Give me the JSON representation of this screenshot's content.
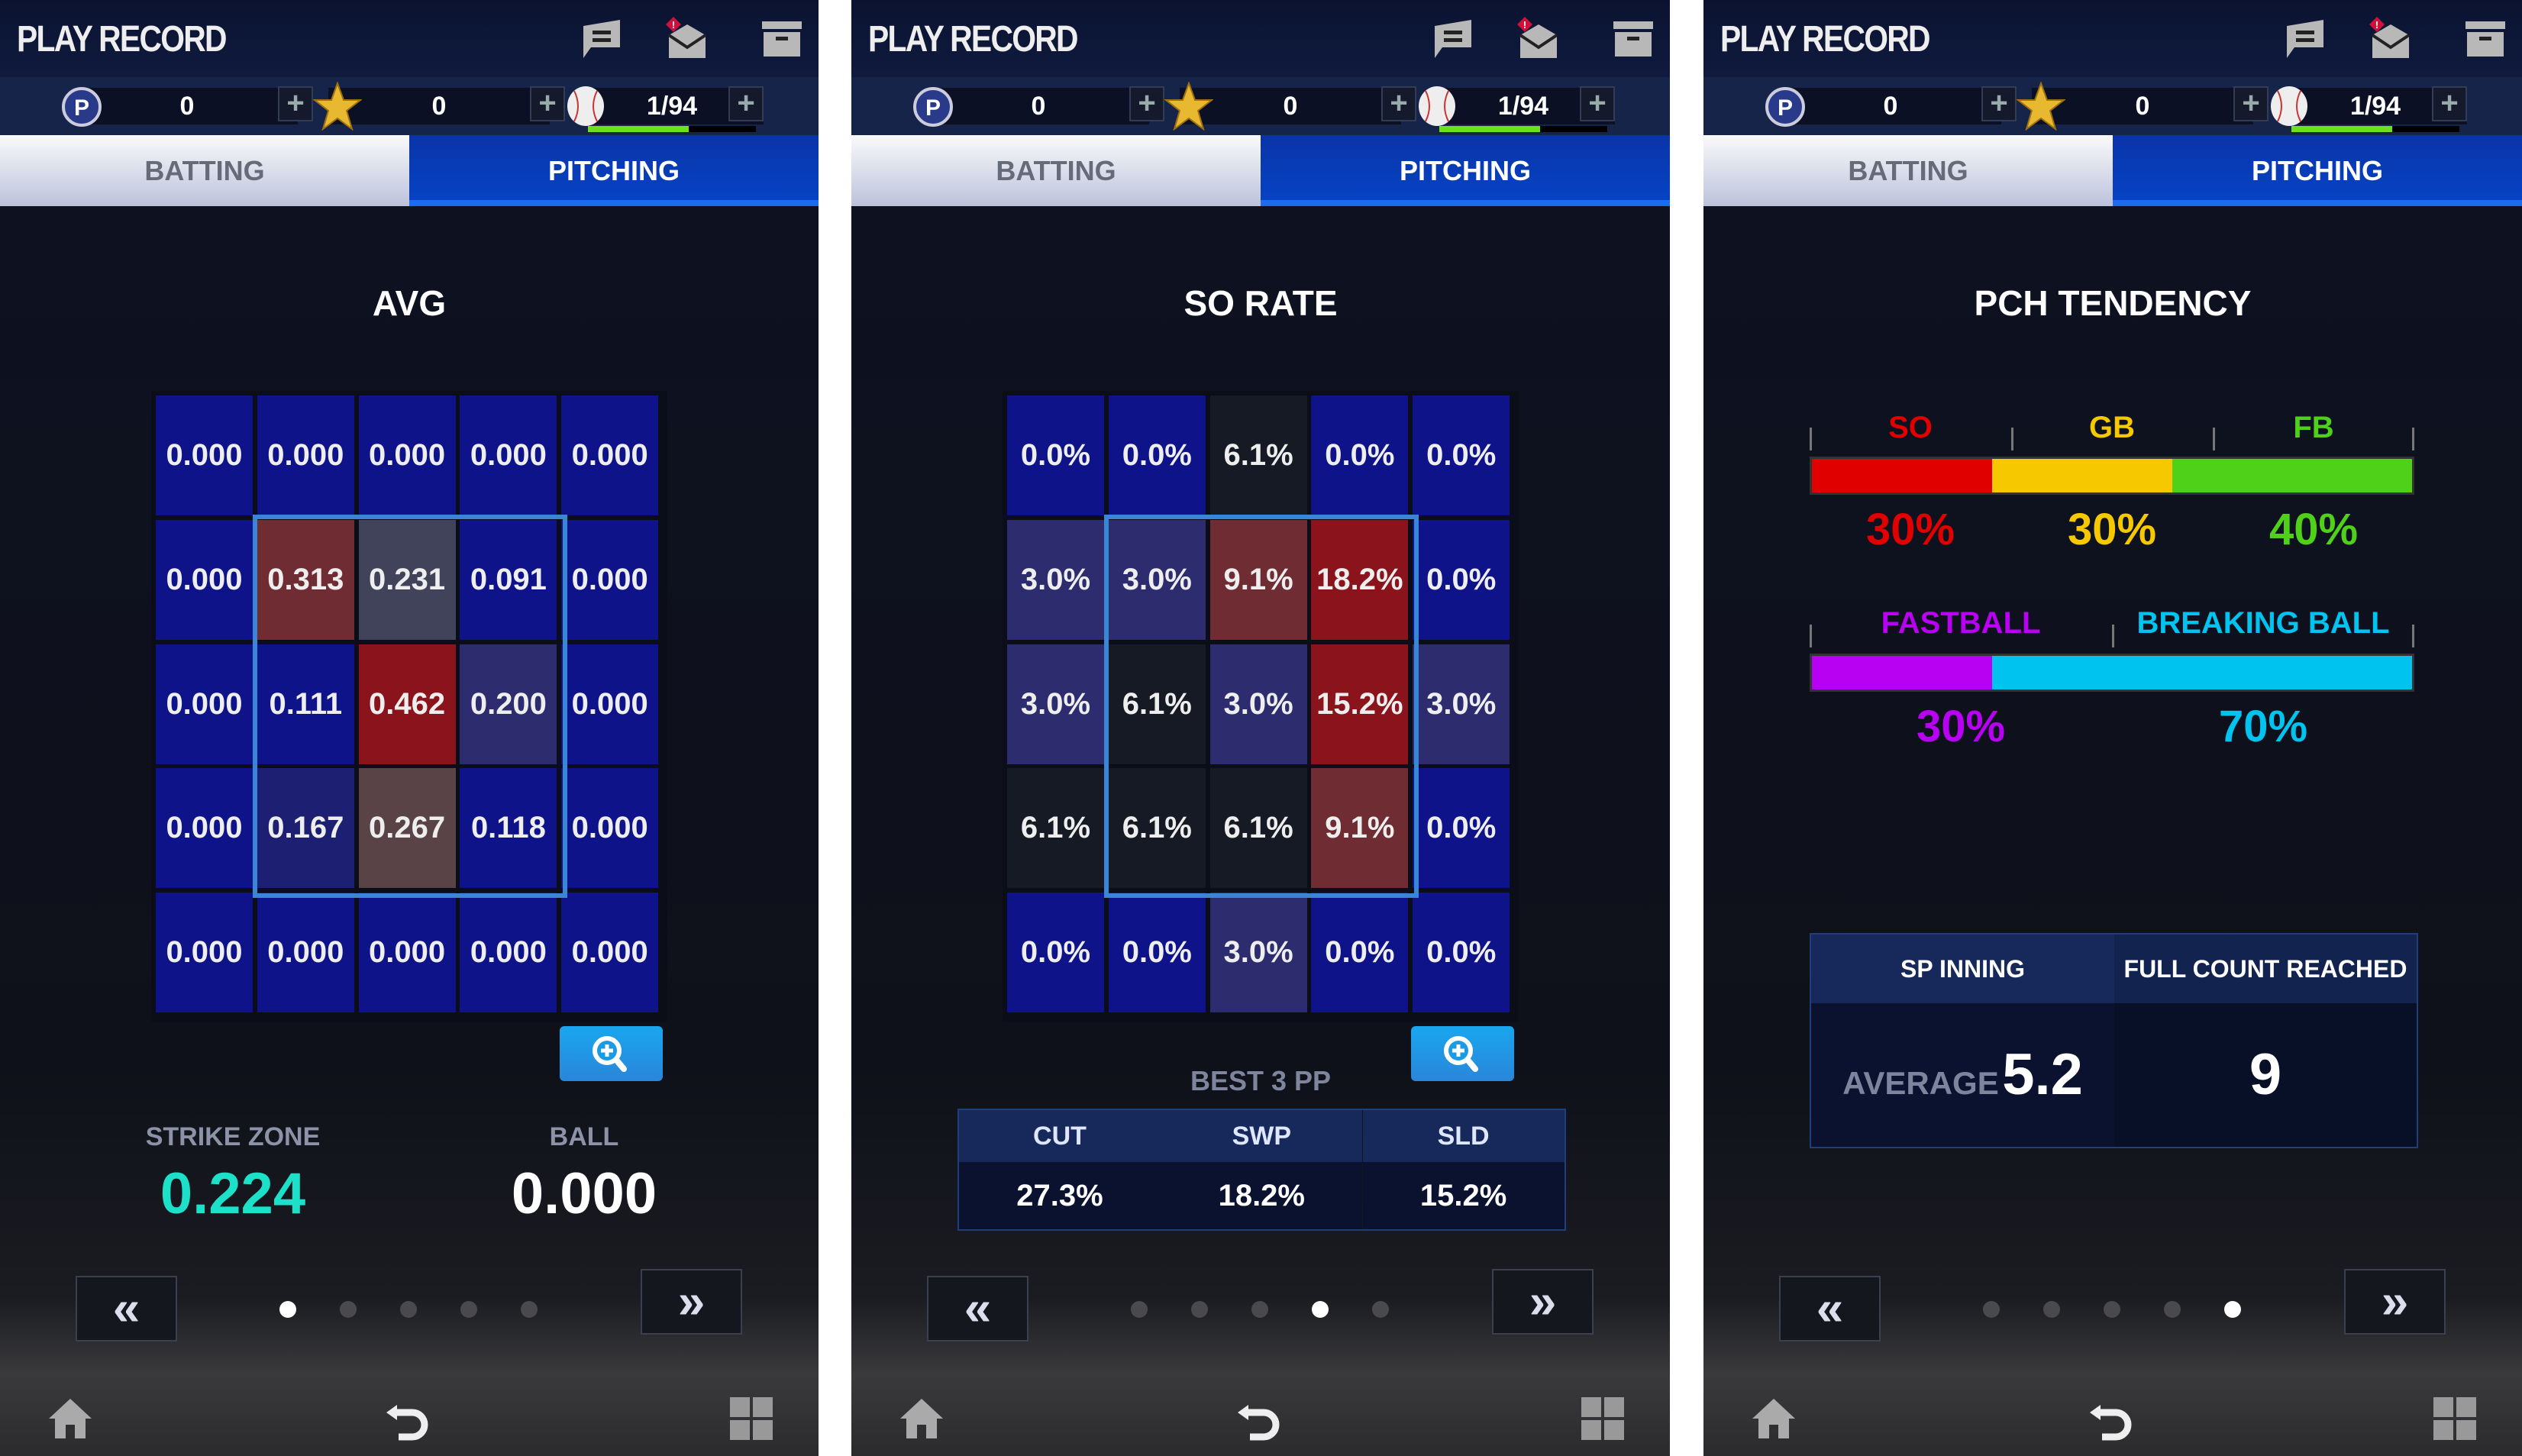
{
  "header": {
    "title": "PLAY RECORD",
    "icons": [
      "chat-icon",
      "mail-icon",
      "storage-icon"
    ],
    "currencies": [
      {
        "icon": "p-point-icon",
        "value": "0"
      },
      {
        "icon": "star-icon",
        "value": "0"
      },
      {
        "icon": "baseball-icon",
        "value": "1/94",
        "progress": 0.6
      }
    ],
    "tabs": {
      "batting": "BATTING",
      "pitching": "PITCHING",
      "active": "PITCHING"
    }
  },
  "colors": {
    "B": "#0f138a",
    "I": "#2c2c6e",
    "J": "#1c1f72",
    "D": "#161a24",
    "M": "#6f2c33",
    "R": "#8a131c",
    "S": "#41435a",
    "N": "#5a4347",
    "teal": "#1de0c8"
  },
  "panels": [
    {
      "section_title": "AVG",
      "grid": [
        [
          [
            "0.000",
            "B"
          ],
          [
            "0.000",
            "B"
          ],
          [
            "0.000",
            "B"
          ],
          [
            "0.000",
            "B"
          ],
          [
            "0.000",
            "B"
          ]
        ],
        [
          [
            "0.000",
            "B"
          ],
          [
            "0.313",
            "M"
          ],
          [
            "0.231",
            "S"
          ],
          [
            "0.091",
            "B"
          ],
          [
            "0.000",
            "B"
          ]
        ],
        [
          [
            "0.000",
            "B"
          ],
          [
            "0.111",
            "B"
          ],
          [
            "0.462",
            "R"
          ],
          [
            "0.200",
            "I"
          ],
          [
            "0.000",
            "B"
          ]
        ],
        [
          [
            "0.000",
            "B"
          ],
          [
            "0.167",
            "J"
          ],
          [
            "0.267",
            "N"
          ],
          [
            "0.118",
            "B"
          ],
          [
            "0.000",
            "B"
          ]
        ],
        [
          [
            "0.000",
            "B"
          ],
          [
            "0.000",
            "B"
          ],
          [
            "0.000",
            "B"
          ],
          [
            "0.000",
            "B"
          ],
          [
            "0.000",
            "B"
          ]
        ]
      ],
      "summary": {
        "strike_zone_label": "STRIKE ZONE",
        "strike_zone_value": "0.224",
        "ball_label": "BALL",
        "ball_value": "0.000"
      },
      "page_index": 0
    },
    {
      "section_title": "SO RATE",
      "grid": [
        [
          [
            "0.0%",
            "B"
          ],
          [
            "0.0%",
            "B"
          ],
          [
            "6.1%",
            "D"
          ],
          [
            "0.0%",
            "B"
          ],
          [
            "0.0%",
            "B"
          ]
        ],
        [
          [
            "3.0%",
            "I"
          ],
          [
            "3.0%",
            "I"
          ],
          [
            "9.1%",
            "M"
          ],
          [
            "18.2%",
            "R"
          ],
          [
            "0.0%",
            "B"
          ]
        ],
        [
          [
            "3.0%",
            "I"
          ],
          [
            "6.1%",
            "D"
          ],
          [
            "3.0%",
            "I"
          ],
          [
            "15.2%",
            "R"
          ],
          [
            "3.0%",
            "I"
          ]
        ],
        [
          [
            "6.1%",
            "D"
          ],
          [
            "6.1%",
            "D"
          ],
          [
            "6.1%",
            "D"
          ],
          [
            "9.1%",
            "M"
          ],
          [
            "0.0%",
            "B"
          ]
        ],
        [
          [
            "0.0%",
            "B"
          ],
          [
            "0.0%",
            "B"
          ],
          [
            "3.0%",
            "I"
          ],
          [
            "0.0%",
            "B"
          ],
          [
            "0.0%",
            "B"
          ]
        ]
      ],
      "best": {
        "title": "BEST 3 PP",
        "headers": [
          "CUT",
          "SWP",
          "SLD"
        ],
        "values": [
          "27.3%",
          "18.2%",
          "15.2%"
        ]
      },
      "page_index": 3
    },
    {
      "section_title": "PCH TENDENCY",
      "outcome": [
        {
          "label": "SO",
          "pct": "30%",
          "value": 30,
          "color": "#e10000"
        },
        {
          "label": "GB",
          "pct": "30%",
          "value": 30,
          "color": "#f5c800"
        },
        {
          "label": "FB",
          "pct": "40%",
          "value": 40,
          "color": "#4fd11a"
        }
      ],
      "pitch_type": [
        {
          "label": "FASTBALL",
          "pct": "30%",
          "value": 30,
          "color": "#b800f2"
        },
        {
          "label": "BREAKING BALL",
          "pct": "70%",
          "value": 70,
          "color": "#00c3f0"
        }
      ],
      "stats": {
        "h1": "SP INNING",
        "h2": "FULL COUNT REACHED",
        "avg_label": "AVERAGE",
        "avg_value": "5.2",
        "full_count": "9"
      },
      "page_index": 4
    }
  ],
  "page_count": 5,
  "nav": {
    "prev": "«",
    "next": "»"
  }
}
